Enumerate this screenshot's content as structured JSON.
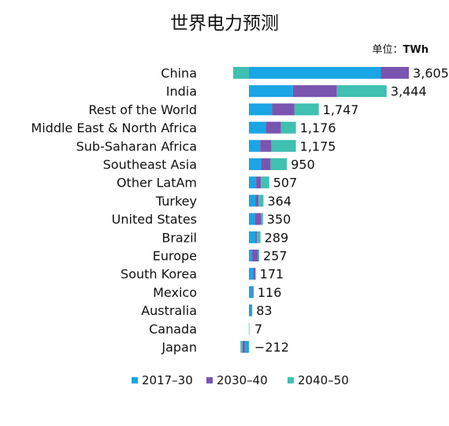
{
  "chart_data": {
    "type": "bar",
    "orientation": "horizontal",
    "stacked": true,
    "title": "世界电力预测",
    "unit_label": "单位：",
    "unit_value": "TWh",
    "categories": [
      "China",
      "India",
      "Rest of the World",
      "Middle East & North Africa",
      "Sub-Saharan Africa",
      "Southeast Asia",
      "Other LatAm",
      "Turkey",
      "United States",
      "Brazil",
      "Europe",
      "South Korea",
      "Mexico",
      "Australia",
      "Canada",
      "Japan"
    ],
    "totals": [
      3605,
      3444,
      1747,
      1176,
      1175,
      950,
      507,
      364,
      350,
      289,
      257,
      171,
      116,
      83,
      7,
      -212
    ],
    "total_labels": [
      "3,605",
      "3,444",
      "1,747",
      "1,176",
      "1,175",
      "950",
      "507",
      "364",
      "350",
      "289",
      "257",
      "171",
      "116",
      "83",
      "7",
      "−212"
    ],
    "series": [
      {
        "name": "2017–30",
        "color": "#1aa6e4",
        "values": [
          3300,
          1100,
          580,
          420,
          280,
          300,
          180,
          160,
          150,
          160,
          80,
          110,
          90,
          50,
          10,
          -100
        ]
      },
      {
        "name": "2030–40",
        "color": "#7a55b0",
        "values": [
          700,
          1100,
          560,
          380,
          280,
          240,
          120,
          80,
          160,
          40,
          150,
          50,
          26,
          23,
          0,
          -62
        ]
      },
      {
        "name": "2040–50",
        "color": "#3fc0b0",
        "values": [
          -395,
          1244,
          607,
          376,
          615,
          410,
          207,
          124,
          40,
          89,
          27,
          11,
          0,
          10,
          -3,
          -50
        ]
      }
    ],
    "legend_position": "bottom",
    "grid": false
  }
}
